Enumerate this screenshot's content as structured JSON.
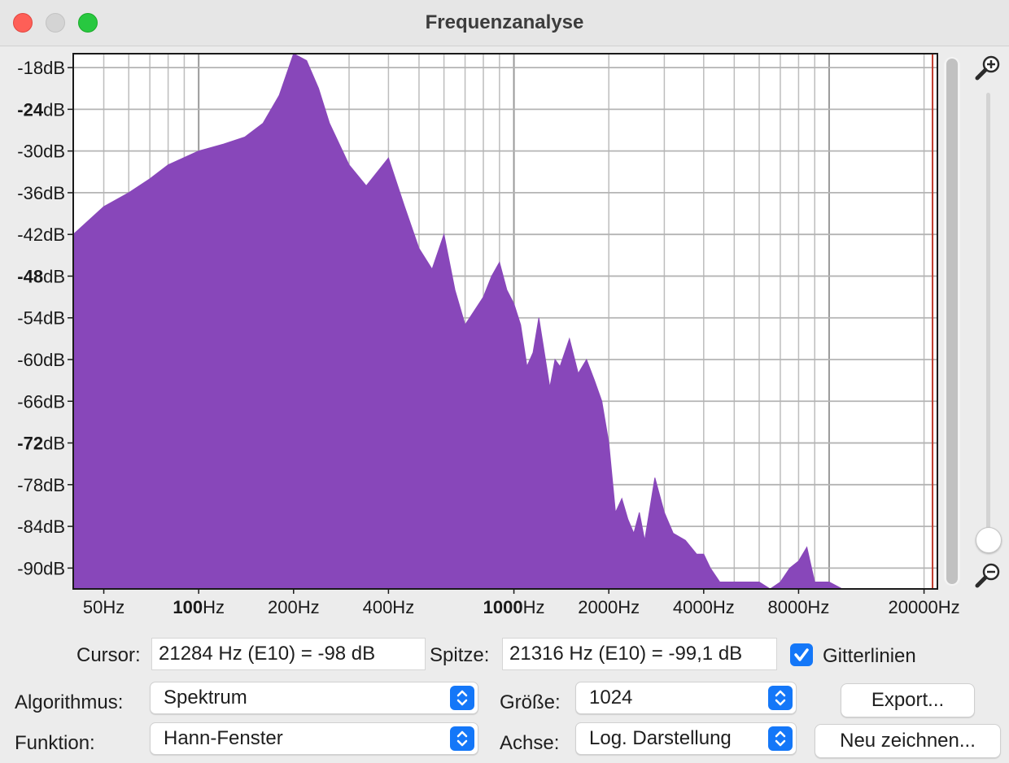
{
  "window": {
    "title": "Frequenzanalyse"
  },
  "chart_data": {
    "type": "area",
    "xscale": "log",
    "color": "#8847ba",
    "marker_color": "#c0392b",
    "marker_freq": 21284,
    "grid": true,
    "xlim": [
      40,
      22050
    ],
    "ylim": [
      -93,
      -16
    ],
    "xticks": [
      {
        "value": 50,
        "bold": "",
        "rest": "50Hz"
      },
      {
        "value": 100,
        "bold": "100",
        "rest": "Hz"
      },
      {
        "value": 200,
        "bold": "",
        "rest": "200Hz"
      },
      {
        "value": 400,
        "bold": "",
        "rest": "400Hz"
      },
      {
        "value": 1000,
        "bold": "1000",
        "rest": "Hz"
      },
      {
        "value": 2000,
        "bold": "",
        "rest": "2000Hz"
      },
      {
        "value": 4000,
        "bold": "",
        "rest": "4000Hz"
      },
      {
        "value": 8000,
        "bold": "",
        "rest": "8000Hz"
      },
      {
        "value": 20000,
        "bold": "",
        "rest": "20000Hz"
      }
    ],
    "yticks": [
      {
        "value": -18,
        "bold": "",
        "rest": "-18dB"
      },
      {
        "value": -24,
        "bold": "-24",
        "rest": "dB"
      },
      {
        "value": -30,
        "bold": "",
        "rest": "-30dB"
      },
      {
        "value": -36,
        "bold": "",
        "rest": "-36dB"
      },
      {
        "value": -42,
        "bold": "",
        "rest": "-42dB"
      },
      {
        "value": -48,
        "bold": "-48",
        "rest": "dB"
      },
      {
        "value": -54,
        "bold": "",
        "rest": "-54dB"
      },
      {
        "value": -60,
        "bold": "",
        "rest": "-60dB"
      },
      {
        "value": -66,
        "bold": "",
        "rest": "-66dB"
      },
      {
        "value": -72,
        "bold": "-72",
        "rest": "dB"
      },
      {
        "value": -78,
        "bold": "",
        "rest": "-78dB"
      },
      {
        "value": -84,
        "bold": "",
        "rest": "-84dB"
      },
      {
        "value": -90,
        "bold": "",
        "rest": "-90dB"
      }
    ],
    "x": [
      40,
      50,
      60,
      70,
      80,
      100,
      120,
      140,
      160,
      180,
      200,
      220,
      240,
      260,
      300,
      340,
      400,
      450,
      500,
      550,
      600,
      650,
      700,
      800,
      850,
      900,
      950,
      1000,
      1050,
      1100,
      1150,
      1200,
      1300,
      1350,
      1400,
      1500,
      1600,
      1700,
      1800,
      1900,
      2000,
      2100,
      2200,
      2300,
      2400,
      2500,
      2600,
      2800,
      3000,
      3200,
      3500,
      3800,
      4000,
      4200,
      4500,
      5000,
      5500,
      6000,
      6500,
      7000,
      7500,
      8000,
      8500,
      9000,
      10000,
      11000,
      12000,
      14000,
      16000,
      18000,
      20000,
      22050
    ],
    "y": [
      -42,
      -38,
      -36,
      -34,
      -32,
      -30,
      -29,
      -28,
      -26,
      -22,
      -16,
      -17,
      -21,
      -26,
      -32,
      -35,
      -31,
      -38,
      -44,
      -47,
      -42,
      -50,
      -55,
      -51,
      -48,
      -46,
      -50,
      -52,
      -55,
      -61,
      -59,
      -54,
      -64,
      -60,
      -61,
      -57,
      -62,
      -60,
      -63,
      -66,
      -72,
      -82,
      -80,
      -83,
      -85,
      -82,
      -86,
      -77,
      -82,
      -85,
      -86,
      -88,
      -88,
      -90,
      -92,
      -92,
      -92,
      -92,
      -93,
      -92,
      -90,
      -89,
      -87,
      -92,
      -92,
      -93,
      -93,
      -93,
      -93,
      -93,
      -93,
      -93
    ]
  },
  "controls": {
    "cursor_label": "Cursor:",
    "cursor_value": "21284 Hz (E10) = -98 dB",
    "peak_label": "Spitze:",
    "peak_value": "21316 Hz (E10) = -99,1 dB",
    "gridlines_label": "Gitterlinien",
    "gridlines_checked": true,
    "algorithm_label": "Algorithmus:",
    "algorithm_value": "Spektrum",
    "function_label": "Funktion:",
    "function_value": "Hann-Fenster",
    "size_label": "Größe:",
    "size_value": "1024",
    "axis_label": "Achse:",
    "axis_value": "Log. Darstellung",
    "export_button": "Export...",
    "redraw_button": "Neu zeichnen..."
  },
  "icons": {
    "zoom_in": "zoom-in-icon",
    "zoom_out": "zoom-out-icon",
    "stepper": "up-down-chevron-icon",
    "checkmark": "checkmark-icon"
  },
  "zoom_level_fraction": 0.0
}
